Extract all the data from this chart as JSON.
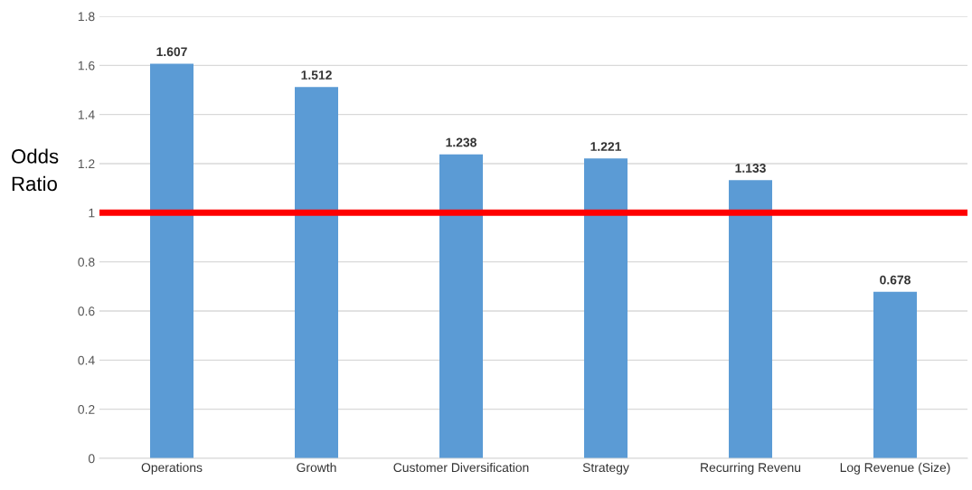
{
  "chart_data": {
    "type": "bar",
    "ylabel": "Odds\nRatio",
    "categories": [
      "Operations",
      "Growth",
      "Customer Diversification",
      "Strategy",
      "Recurring Revenu",
      "Log Revenue (Size)"
    ],
    "values": [
      1.607,
      1.512,
      1.238,
      1.221,
      1.133,
      0.678
    ],
    "color": "#5b9bd5",
    "data_labels": true,
    "ylim": [
      0,
      1.8
    ],
    "yticks": [
      0,
      0.2,
      0.4,
      0.6,
      0.8,
      1,
      1.2,
      1.4,
      1.6,
      1.8
    ],
    "grid": "y",
    "ref_lines": [
      {
        "axis": "y",
        "value": 1,
        "color": "#ff0000"
      }
    ]
  }
}
